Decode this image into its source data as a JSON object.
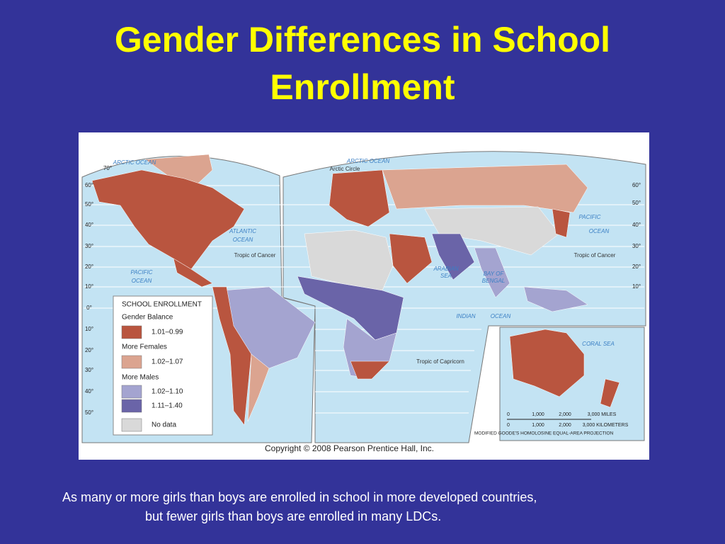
{
  "title": [
    "Gender Differences in School",
    "Enrollment"
  ],
  "map": {
    "legend": {
      "title": "SCHOOL ENROLLMENT",
      "headings": [
        "Gender Balance",
        "More Females",
        "More Males"
      ],
      "items": [
        {
          "label": "1.01–0.99",
          "color": "#b9553f"
        },
        {
          "label": "1.02–1.07",
          "color": "#dba490"
        },
        {
          "label": "1.02–1.10",
          "color": "#a4a4d0"
        },
        {
          "label": "1.11–1.40",
          "color": "#6a64a8"
        },
        {
          "label": "No data",
          "color": "#d9d9d9"
        }
      ]
    },
    "oceans": [
      "ARCTIC OCEAN",
      "ARCTIC OCEAN",
      "ATLANTIC",
      "OCEAN",
      "PACIFIC",
      "OCEAN",
      "PACIFIC",
      "OCEAN",
      "INDIAN",
      "OCEAN",
      "ARABIAN",
      "SEA",
      "BAY OF",
      "BENGAL",
      "CORAL   SEA"
    ],
    "lines": [
      "Arctic Circle",
      "Tropic of Cancer",
      "Tropic of Cancer",
      "Tropic of Capricorn"
    ],
    "deg_left": [
      "70°",
      "60°",
      "50°",
      "40°",
      "30°",
      "20°",
      "10°",
      "0°",
      "10°",
      "20°",
      "30°",
      "40°",
      "50°"
    ],
    "deg_right": [
      "60°",
      "50°",
      "40°",
      "30°",
      "20°",
      "10°"
    ],
    "scale_miles": [
      "0",
      "1,000",
      "2,000",
      "3,000 MILES"
    ],
    "scale_km": [
      "0",
      "1,000",
      "2,000",
      "3,000 KILOMETERS"
    ],
    "projection": "MODIFIED GOODE'S HOMOLOSINE EQUAL-AREA PROJECTION",
    "copyright": "Copyright © 2008 Pearson Prentice Hall, Inc."
  },
  "caption": [
    "As many or more girls than boys are enrolled in school in more developed countries,",
    "but fewer girls than boys are enrolled in many LDCs."
  ]
}
